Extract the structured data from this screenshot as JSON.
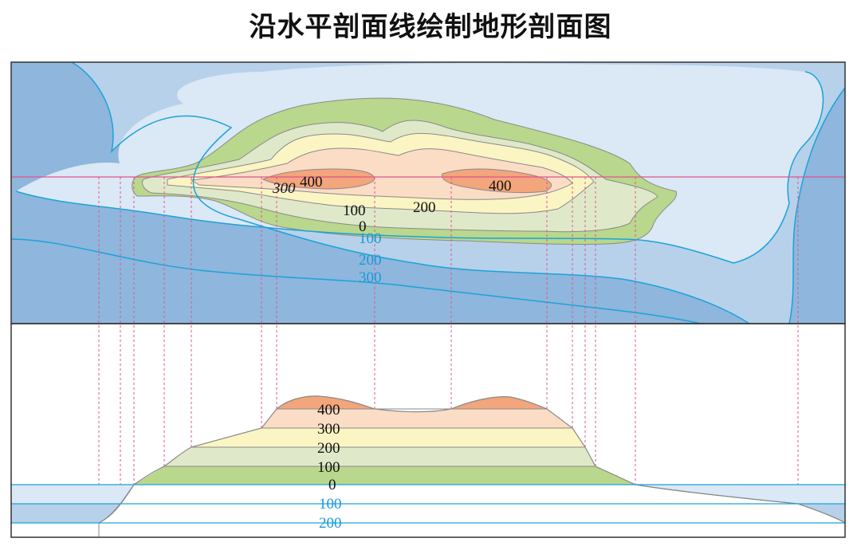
{
  "title": "沿水平剖面线绘制地形剖面图",
  "colors": {
    "sea_300": "#8fb6dc",
    "sea_200": "#b7d1ea",
    "sea_100": "#dbe8f5",
    "land_0": "#b9d78d",
    "land_100": "#dfe9c9",
    "land_200": "#fbf5c4",
    "land_300": "#fbdcc5",
    "land_400": "#f3a57b",
    "section_line": "#e0558c",
    "contour_blue": "#1aa3d9"
  },
  "map_labels": {
    "c300_a": "300",
    "c400_a": "400",
    "c400_b": "400",
    "c100": "100",
    "c200": "200",
    "c0": "0",
    "d100": "100",
    "d200": "200",
    "d300": "300"
  },
  "profile_labels": {
    "h400": "400",
    "h300": "300",
    "h200": "200",
    "h100": "100",
    "h0": "0",
    "d100": "100",
    "d200": "200"
  }
}
